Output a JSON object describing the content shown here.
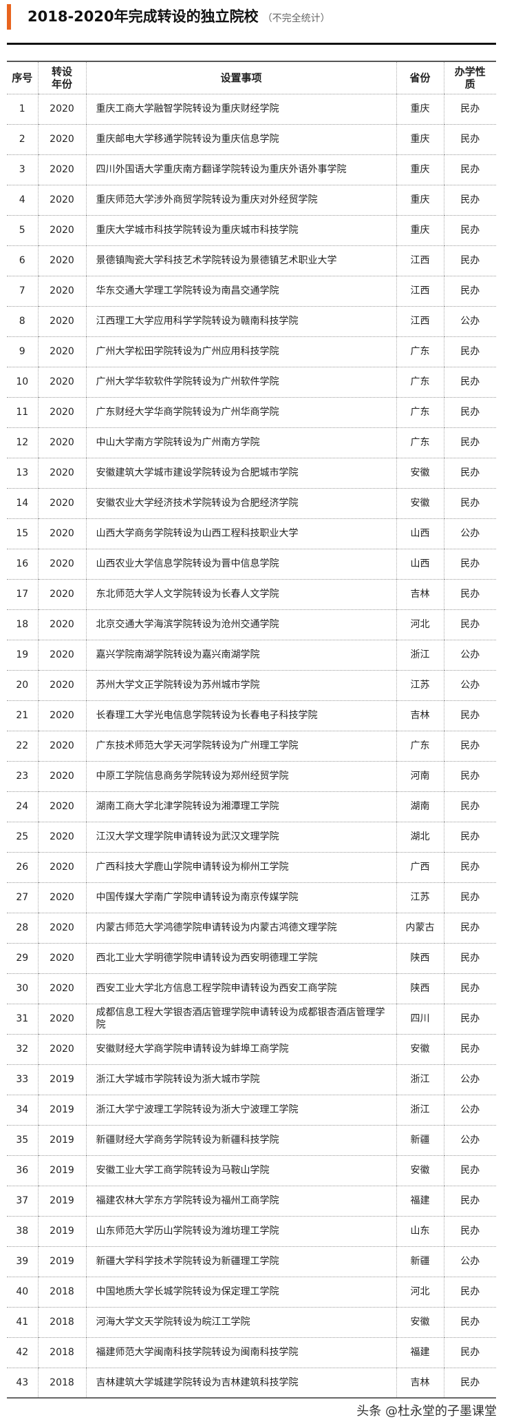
{
  "title": "2018-2020年完成转设的独立院校",
  "subtitle": "（不完全统计）",
  "accent_color": "#e8641e",
  "table": {
    "headers": [
      "序号",
      "转设年份",
      "设置事项",
      "省份",
      "办学性质"
    ],
    "rows": [
      [
        "1",
        "2020",
        "重庆工商大学融智学院转设为重庆财经学院",
        "重庆",
        "民办"
      ],
      [
        "2",
        "2020",
        "重庆邮电大学移通学院转设为重庆信息学院",
        "重庆",
        "民办"
      ],
      [
        "3",
        "2020",
        "四川外国语大学重庆南方翻译学院转设为重庆外语外事学院",
        "重庆",
        "民办"
      ],
      [
        "4",
        "2020",
        "重庆师范大学涉外商贸学院转设为重庆对外经贸学院",
        "重庆",
        "民办"
      ],
      [
        "5",
        "2020",
        "重庆大学城市科技学院转设为重庆城市科技学院",
        "重庆",
        "民办"
      ],
      [
        "6",
        "2020",
        "景德镇陶瓷大学科技艺术学院转设为景德镇艺术职业大学",
        "江西",
        "民办"
      ],
      [
        "7",
        "2020",
        "华东交通大学理工学院转设为南昌交通学院",
        "江西",
        "民办"
      ],
      [
        "8",
        "2020",
        "江西理工大学应用科学学院转设为赣南科技学院",
        "江西",
        "公办"
      ],
      [
        "9",
        "2020",
        "广州大学松田学院转设为广州应用科技学院",
        "广东",
        "民办"
      ],
      [
        "10",
        "2020",
        "广州大学华软软件学院转设为广州软件学院",
        "广东",
        "民办"
      ],
      [
        "11",
        "2020",
        "广东财经大学华商学院转设为广州华商学院",
        "广东",
        "民办"
      ],
      [
        "12",
        "2020",
        "中山大学南方学院转设为广州南方学院",
        "广东",
        "民办"
      ],
      [
        "13",
        "2020",
        "安徽建筑大学城市建设学院转设为合肥城市学院",
        "安徽",
        "民办"
      ],
      [
        "14",
        "2020",
        "安徽农业大学经济技术学院转设为合肥经济学院",
        "安徽",
        "民办"
      ],
      [
        "15",
        "2020",
        "山西大学商务学院转设为山西工程科技职业大学",
        "山西",
        "公办"
      ],
      [
        "16",
        "2020",
        "山西农业大学信息学院转设为晋中信息学院",
        "山西",
        "民办"
      ],
      [
        "17",
        "2020",
        "东北师范大学人文学院转设为长春人文学院",
        "吉林",
        "民办"
      ],
      [
        "18",
        "2020",
        "北京交通大学海滨学院转设为沧州交通学院",
        "河北",
        "民办"
      ],
      [
        "19",
        "2020",
        "嘉兴学院南湖学院转设为嘉兴南湖学院",
        "浙江",
        "公办"
      ],
      [
        "20",
        "2020",
        "苏州大学文正学院转设为苏州城市学院",
        "江苏",
        "公办"
      ],
      [
        "21",
        "2020",
        "长春理工大学光电信息学院转设为长春电子科技学院",
        "吉林",
        "民办"
      ],
      [
        "22",
        "2020",
        "广东技术师范大学天河学院转设为广州理工学院",
        "广东",
        "民办"
      ],
      [
        "23",
        "2020",
        "中原工学院信息商务学院转设为郑州经贸学院",
        "河南",
        "民办"
      ],
      [
        "24",
        "2020",
        "湖南工商大学北津学院转设为湘潭理工学院",
        "湖南",
        "民办"
      ],
      [
        "25",
        "2020",
        "江汉大学文理学院申请转设为武汉文理学院",
        "湖北",
        "民办"
      ],
      [
        "26",
        "2020",
        "广西科技大学鹿山学院申请转设为柳州工学院",
        "广西",
        "民办"
      ],
      [
        "27",
        "2020",
        "中国传媒大学南广学院申请转设为南京传媒学院",
        "江苏",
        "民办"
      ],
      [
        "28",
        "2020",
        "内蒙古师范大学鸿德学院申请转设为内蒙古鸿德文理学院",
        "内蒙古",
        "民办"
      ],
      [
        "29",
        "2020",
        "西北工业大学明德学院申请转设为西安明德理工学院",
        "陕西",
        "民办"
      ],
      [
        "30",
        "2020",
        "西安工业大学北方信息工程学院申请转设为西安工商学院",
        "陕西",
        "民办"
      ],
      [
        "31",
        "2020",
        "成都信息工程大学银杏酒店管理学院申请转设为成都银杏酒店管理学院",
        "四川",
        "民办"
      ],
      [
        "32",
        "2020",
        "安徽财经大学商学院申请转设为蚌埠工商学院",
        "安徽",
        "民办"
      ],
      [
        "33",
        "2019",
        "浙江大学城市学院转设为浙大城市学院",
        "浙江",
        "公办"
      ],
      [
        "34",
        "2019",
        "浙江大学宁波理工学院转设为浙大宁波理工学院",
        "浙江",
        "公办"
      ],
      [
        "35",
        "2019",
        "新疆财经大学商务学院转设为新疆科技学院",
        "新疆",
        "公办"
      ],
      [
        "36",
        "2019",
        "安徽工业大学工商学院转设为马鞍山学院",
        "安徽",
        "民办"
      ],
      [
        "37",
        "2019",
        "福建农林大学东方学院转设为福州工商学院",
        "福建",
        "民办"
      ],
      [
        "38",
        "2019",
        "山东师范大学历山学院转设为潍坊理工学院",
        "山东",
        "民办"
      ],
      [
        "39",
        "2019",
        "新疆大学科学技术学院转设为新疆理工学院",
        "新疆",
        "公办"
      ],
      [
        "40",
        "2018",
        "中国地质大学长城学院转设为保定理工学院",
        "河北",
        "民办"
      ],
      [
        "41",
        "2018",
        "河海大学文天学院转设为皖江工学院",
        "安徽",
        "民办"
      ],
      [
        "42",
        "2018",
        "福建师范大学闽南科技学院转设为闽南科技学院",
        "福建",
        "民办"
      ],
      [
        "43",
        "2018",
        "吉林建筑大学城建学院转设为吉林建筑科技学院",
        "吉林",
        "民办"
      ]
    ]
  },
  "watermark": "头条 @杜永堂的子墨课堂"
}
